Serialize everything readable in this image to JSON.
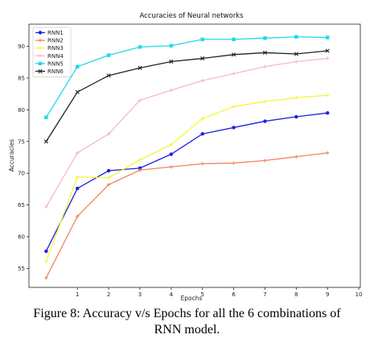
{
  "chart_data": {
    "type": "line",
    "title": "Accuracies of Neural networks",
    "xlabel": "Epochs",
    "ylabel": "Accuracies",
    "x": [
      0,
      1,
      2,
      3,
      4,
      5,
      6,
      7,
      8,
      9
    ],
    "xlim": [
      0,
      10
    ],
    "ylim": [
      52,
      93.5
    ],
    "xticks": [
      "1",
      "2",
      "3",
      "4",
      "5",
      "6",
      "7",
      "8",
      "9",
      "10"
    ],
    "yticks": [
      "55",
      "60",
      "65",
      "70",
      "75",
      "80",
      "85",
      "90"
    ],
    "legend_position": "top-left",
    "series": [
      {
        "name": "RNN1",
        "color": "#1f1fdd",
        "marker": "circle",
        "values": [
          57.7,
          67.6,
          70.4,
          70.8,
          73.0,
          76.2,
          77.2,
          78.2,
          78.9,
          79.5
        ]
      },
      {
        "name": "RNN2",
        "color": "#f4845f",
        "marker": "plus",
        "values": [
          53.5,
          63.2,
          68.2,
          70.5,
          71.0,
          71.5,
          71.6,
          72.0,
          72.6,
          73.2
        ]
      },
      {
        "name": "RNN3",
        "color": "#f5f53a",
        "marker": "plus",
        "values": [
          56.1,
          69.4,
          69.3,
          72.1,
          74.5,
          78.6,
          80.5,
          81.3,
          81.9,
          82.3
        ]
      },
      {
        "name": "RNN4",
        "color": "#f7b8c8",
        "marker": "plus",
        "values": [
          64.7,
          73.2,
          76.2,
          81.5,
          83.1,
          84.6,
          85.7,
          86.8,
          87.6,
          88.1
        ]
      },
      {
        "name": "RNN5",
        "color": "#20d8e8",
        "marker": "square",
        "values": [
          78.8,
          86.8,
          88.6,
          89.9,
          90.1,
          91.1,
          91.1,
          91.3,
          91.5,
          91.4
        ]
      },
      {
        "name": "RNN6",
        "color": "#222222",
        "marker": "x",
        "values": [
          75.0,
          82.8,
          85.4,
          86.6,
          87.6,
          88.1,
          88.7,
          89.0,
          88.8,
          89.3
        ]
      }
    ]
  },
  "caption": {
    "line1": "Figure 8: Accuracy v/s Epochs for all the 6 combinations of",
    "line2": "RNN model."
  }
}
